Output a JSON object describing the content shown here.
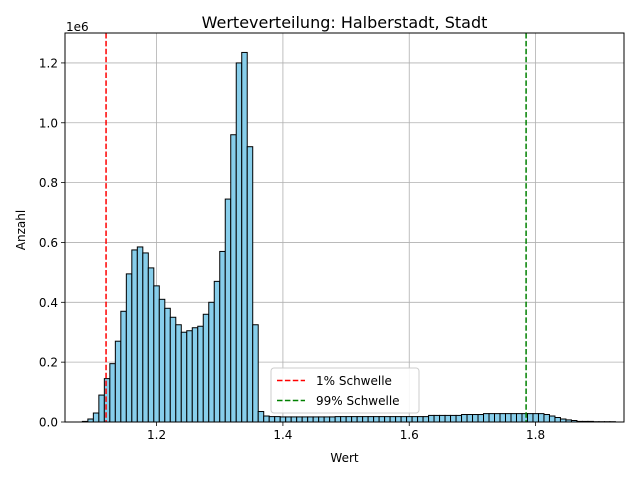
{
  "chart_data": {
    "type": "bar",
    "title": "Werteverteilung: Halberstadt, Stadt",
    "xlabel": "Wert",
    "ylabel": "Anzahl",
    "y_offset_label": "1e6",
    "xlim": [
      1.055,
      1.94
    ],
    "ylim": [
      0,
      1.3
    ],
    "x_ticks": [
      1.2,
      1.4,
      1.6,
      1.8
    ],
    "x_tick_labels": [
      "1.2",
      "1.4",
      "1.6",
      "1.8"
    ],
    "y_ticks": [
      0.0,
      0.2,
      0.4,
      0.6,
      0.8,
      1.0,
      1.2
    ],
    "y_tick_labels": [
      "0.0",
      "0.2",
      "0.4",
      "0.6",
      "0.8",
      "1.0",
      "1.2"
    ],
    "grid": true,
    "bin_width": 0.0087,
    "bin_start": 1.0825,
    "values": [
      0.002,
      0.01,
      0.03,
      0.09,
      0.145,
      0.195,
      0.27,
      0.37,
      0.495,
      0.575,
      0.585,
      0.565,
      0.515,
      0.455,
      0.41,
      0.38,
      0.35,
      0.325,
      0.3,
      0.305,
      0.315,
      0.32,
      0.36,
      0.4,
      0.47,
      0.57,
      0.745,
      0.96,
      1.2,
      1.235,
      0.92,
      0.325,
      0.035,
      0.02,
      0.018,
      0.018,
      0.017,
      0.017,
      0.017,
      0.017,
      0.017,
      0.017,
      0.017,
      0.017,
      0.017,
      0.017,
      0.018,
      0.018,
      0.018,
      0.018,
      0.018,
      0.018,
      0.018,
      0.018,
      0.018,
      0.018,
      0.018,
      0.018,
      0.018,
      0.018,
      0.018,
      0.018,
      0.018,
      0.022,
      0.022,
      0.022,
      0.022,
      0.022,
      0.022,
      0.025,
      0.025,
      0.025,
      0.025,
      0.028,
      0.028,
      0.028,
      0.028,
      0.028,
      0.028,
      0.028,
      0.028,
      0.028,
      0.028,
      0.028,
      0.025,
      0.02,
      0.015,
      0.01,
      0.007,
      0.005,
      0.002,
      0.002,
      0.002,
      0.001,
      0.001,
      0.001,
      0.001
    ],
    "bar_color": "#87ceeb",
    "bar_edge_color": "#000000",
    "thresholds": [
      {
        "label": "1% Schwelle",
        "x": 1.12,
        "color": "#ff0000"
      },
      {
        "label": "99% Schwelle",
        "x": 1.785,
        "color": "#008000"
      }
    ],
    "legend_placement": "lower-center"
  }
}
